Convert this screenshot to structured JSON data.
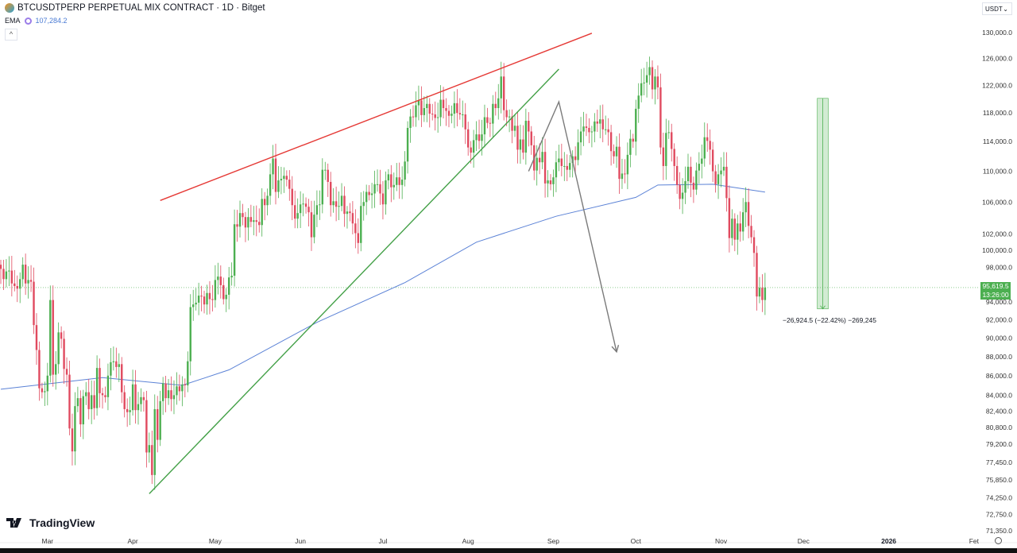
{
  "header": {
    "title": "BTCUSDTPERP PERPETUAL MIX CONTRACT · 1D · Bitget",
    "ema_label": "EMA",
    "ema_value": "107,284.2",
    "collapse_icon": "chevron-up-icon"
  },
  "currency_selector": {
    "value": "USDT"
  },
  "brand": {
    "name": "TradingView"
  },
  "last_price": {
    "value": "95,619.5",
    "countdown": "13:26:00"
  },
  "measure_label": "−26,924.5 (−22.42%) −269,245",
  "colors": {
    "up": "#4caf50",
    "down": "#e04a5f",
    "ema": "#5b82d6",
    "resistance": "#e53935",
    "support": "#43a047",
    "projection": "#7a7a7a",
    "measure": "#4caf50"
  },
  "chart_data": {
    "type": "candlestick",
    "scale": "log",
    "ylim": [
      71350,
      130000
    ],
    "start_date": "2025-02-12",
    "y_ticks": [
      "130,000.0",
      "126,000.0",
      "122,000.0",
      "118,000.0",
      "114,000.0",
      "110,000.0",
      "106,000.0",
      "102,000.0",
      "100,000.0",
      "98,000.0",
      "94,000.0",
      "92,000.0",
      "90,000.0",
      "88,000.0",
      "86,000.0",
      "84,000.0",
      "82,400.0",
      "80,800.0",
      "79,200.0",
      "77,450.0",
      "75,850.0",
      "74,250.0",
      "72,750.0",
      "71,350.0"
    ],
    "x_ticks": [
      {
        "label": "Mar",
        "date": "2025-03-01"
      },
      {
        "label": "Apr",
        "date": "2025-04-01"
      },
      {
        "label": "May",
        "date": "2025-05-01"
      },
      {
        "label": "Jun",
        "date": "2025-06-01"
      },
      {
        "label": "Jul",
        "date": "2025-07-01"
      },
      {
        "label": "Aug",
        "date": "2025-08-01"
      },
      {
        "label": "Sep",
        "date": "2025-09-01"
      },
      {
        "label": "Oct",
        "date": "2025-10-01"
      },
      {
        "label": "Nov",
        "date": "2025-11-01"
      },
      {
        "label": "Dec",
        "date": "2025-12-01"
      },
      {
        "label": "2026",
        "date": "2026-01-01"
      },
      {
        "label": "Fet",
        "date": "2026-02-01"
      }
    ],
    "closes": [
      97800,
      96600,
      97500,
      97600,
      96100,
      95800,
      95500,
      96600,
      98300,
      96100,
      96500,
      96300,
      91400,
      88700,
      84700,
      84300,
      84400,
      86000,
      94200,
      86100,
      87200,
      90600,
      89900,
      86700,
      86100,
      80700,
      78500,
      82900,
      83700,
      81100,
      83900,
      84300,
      82600,
      84000,
      82700,
      86800,
      84200,
      84000,
      83800,
      86000,
      87400,
      87500,
      86900,
      87200,
      84300,
      82600,
      82300,
      82500,
      85100,
      82500,
      83100,
      83800,
      83500,
      78400,
      79100,
      76300,
      82600,
      79600,
      83400,
      85200,
      83700,
      84500,
      83600,
      84000,
      84900,
      84400,
      85100,
      85000,
      87500,
      93400,
      93700,
      93900,
      94700,
      94600,
      93700,
      95000,
      94300,
      94200,
      96500,
      96900,
      95900,
      94300,
      94800,
      96800,
      97000,
      103200,
      102900,
      104600,
      104100,
      102800,
      104100,
      103500,
      103700,
      103500,
      103100,
      106400,
      105600,
      106800,
      109600,
      111700,
      107300,
      108800,
      109000,
      109400,
      108900,
      107700,
      105600,
      103900,
      104600,
      105700,
      105800,
      105400,
      104700,
      101600,
      104400,
      105600,
      105700,
      110200,
      110200,
      108600,
      105600,
      106100,
      105400,
      105500,
      106800,
      104500,
      104800,
      104600,
      103300,
      102100,
      100900,
      105500,
      106000,
      107300,
      106900,
      107100,
      108300,
      108300,
      107100,
      105700,
      108800,
      109600,
      107900,
      108200,
      109200,
      108200,
      108900,
      111300,
      115900,
      117500,
      117400,
      119100,
      119800,
      117700,
      118700,
      119300,
      117900,
      117800,
      117300,
      117400,
      119900,
      118700,
      118300,
      117600,
      117900,
      119400,
      118000,
      117800,
      117800,
      115700,
      113200,
      112500,
      114200,
      115000,
      114100,
      115000,
      117400,
      116600,
      116500,
      119300,
      118700,
      120100,
      123300,
      118400,
      117400,
      117500,
      115500,
      116200,
      112900,
      114300,
      112500,
      116900,
      115400,
      113500,
      110100,
      111800,
      111200,
      112600,
      108400,
      108800,
      108300,
      109200,
      111200,
      111700,
      110700,
      110700,
      110200,
      111100,
      112000,
      111500,
      113900,
      115400,
      116100,
      115900,
      115300,
      115400,
      116800,
      116500,
      117100,
      115700,
      115700,
      115300,
      112700,
      112000,
      113300,
      109000,
      109700,
      109600,
      112200,
      114400,
      114000,
      118600,
      120500,
      122300,
      122400,
      123500,
      124700,
      121400,
      123300,
      121700,
      113200,
      110700,
      115200,
      115300,
      113000,
      110700,
      108200,
      106400,
      107200,
      108700,
      110600,
      108500,
      107600,
      110100,
      111000,
      111700,
      114600,
      114100,
      112900,
      110000,
      108300,
      109600,
      110100,
      110600,
      106500,
      101500,
      103900,
      101300,
      103300,
      102300,
      104700,
      106000,
      103000,
      101600,
      99700,
      94600,
      95600,
      94200,
      95619.5
    ],
    "ema": {
      "period_label": "EMA",
      "points": [
        [
          "2025-02-12",
          84600
        ],
        [
          "2025-03-21",
          85800
        ],
        [
          "2025-04-19",
          85000
        ],
        [
          "2025-05-06",
          86600
        ],
        [
          "2025-06-07",
          91700
        ],
        [
          "2025-07-09",
          96200
        ],
        [
          "2025-08-04",
          101000
        ],
        [
          "2025-09-02",
          104200
        ],
        [
          "2025-10-01",
          106600
        ],
        [
          "2025-10-09",
          108200
        ],
        [
          "2025-10-29",
          108300
        ],
        [
          "2025-11-17",
          107284.2
        ]
      ]
    },
    "drawings": {
      "resistance_line": [
        [
          "2025-04-11",
          106200
        ],
        [
          "2025-09-15",
          129900
        ]
      ],
      "support_line": [
        [
          "2025-04-07",
          74600
        ],
        [
          "2025-09-03",
          124400
        ]
      ],
      "projection_path": [
        [
          "2025-08-23",
          110000
        ],
        [
          "2025-09-03",
          119600
        ],
        [
          "2025-09-24",
          88500
        ]
      ],
      "measure_box": {
        "from": "2025-12-06",
        "to": "2025-12-10",
        "top": 120100,
        "bottom": 93200
      }
    }
  }
}
